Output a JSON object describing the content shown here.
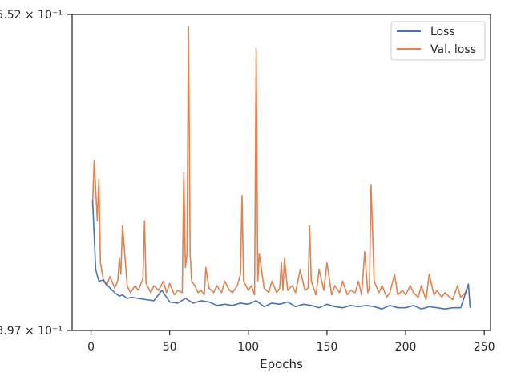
{
  "chart_data": {
    "type": "line",
    "title": "",
    "xlabel": "Epochs",
    "ylabel": "",
    "xlim": [
      -12,
      254
    ],
    "xticks": [
      0,
      50,
      100,
      150,
      200,
      250
    ],
    "ylim": [
      0.397,
      0.552
    ],
    "yscale": "log",
    "ytick_labels": [
      "3.97 × 10⁻¹",
      "5.52 × 10⁻¹"
    ],
    "grid": false,
    "legend_position": "top-right",
    "series": [
      {
        "name": "Loss",
        "color": "#4c72b0",
        "x": [
          1,
          3,
          5,
          8,
          10,
          12,
          15,
          18,
          20,
          23,
          26,
          30,
          35,
          40,
          45,
          50,
          55,
          60,
          65,
          70,
          75,
          80,
          85,
          90,
          95,
          100,
          105,
          110,
          115,
          120,
          125,
          130,
          135,
          140,
          145,
          150,
          155,
          160,
          165,
          170,
          175,
          180,
          185,
          190,
          195,
          200,
          205,
          210,
          215,
          220,
          225,
          230,
          235,
          240,
          241
        ],
        "y": [
          0.455,
          0.423,
          0.418,
          0.4185,
          0.4165,
          0.415,
          0.413,
          0.4115,
          0.412,
          0.4105,
          0.411,
          0.4105,
          0.41,
          0.4095,
          0.414,
          0.409,
          0.4085,
          0.4105,
          0.4085,
          0.4095,
          0.409,
          0.4075,
          0.408,
          0.4075,
          0.4085,
          0.408,
          0.4095,
          0.407,
          0.4085,
          0.408,
          0.409,
          0.407,
          0.408,
          0.4075,
          0.4065,
          0.408,
          0.407,
          0.4065,
          0.4075,
          0.407,
          0.4075,
          0.407,
          0.406,
          0.4075,
          0.4065,
          0.4065,
          0.4075,
          0.406,
          0.407,
          0.4065,
          0.406,
          0.4065,
          0.4065,
          0.4165,
          0.4065
        ]
      },
      {
        "name": "Val. loss",
        "color": "#dd8452",
        "x": [
          1,
          2,
          3,
          4,
          5,
          6,
          8,
          10,
          12,
          15,
          17,
          18,
          19,
          20,
          23,
          25,
          28,
          30,
          33,
          34,
          35,
          38,
          40,
          43,
          46,
          48,
          50,
          53,
          55,
          58,
          59,
          60,
          61,
          62,
          63,
          64,
          66,
          68,
          70,
          72,
          73,
          75,
          78,
          80,
          83,
          85,
          88,
          90,
          93,
          95,
          96,
          97,
          100,
          102,
          104,
          105,
          106,
          107,
          110,
          113,
          115,
          118,
          120,
          121,
          122,
          123,
          125,
          128,
          130,
          133,
          136,
          138,
          139,
          140,
          143,
          145,
          148,
          150,
          153,
          155,
          158,
          160,
          163,
          165,
          168,
          170,
          172,
          174,
          176,
          177,
          178,
          180,
          183,
          185,
          188,
          190,
          193,
          195,
          198,
          200,
          203,
          205,
          208,
          210,
          213,
          215,
          218,
          220,
          223,
          225,
          228,
          230,
          233,
          235,
          238,
          240
        ],
        "y": [
          0.452,
          0.474,
          0.46,
          0.445,
          0.465,
          0.426,
          0.418,
          0.416,
          0.42,
          0.415,
          0.418,
          0.428,
          0.421,
          0.443,
          0.416,
          0.413,
          0.416,
          0.414,
          0.419,
          0.445,
          0.417,
          0.413,
          0.416,
          0.414,
          0.418,
          0.413,
          0.417,
          0.412,
          0.414,
          0.413,
          0.468,
          0.424,
          0.43,
          0.545,
          0.43,
          0.418,
          0.416,
          0.413,
          0.414,
          0.412,
          0.424,
          0.415,
          0.413,
          0.416,
          0.413,
          0.418,
          0.414,
          0.413,
          0.416,
          0.421,
          0.457,
          0.418,
          0.414,
          0.416,
          0.412,
          0.533,
          0.418,
          0.43,
          0.415,
          0.413,
          0.418,
          0.413,
          0.415,
          0.426,
          0.414,
          0.428,
          0.414,
          0.416,
          0.413,
          0.423,
          0.414,
          0.415,
          0.443,
          0.418,
          0.412,
          0.423,
          0.414,
          0.426,
          0.412,
          0.416,
          0.413,
          0.418,
          0.412,
          0.414,
          0.413,
          0.418,
          0.412,
          0.431,
          0.413,
          0.415,
          0.462,
          0.418,
          0.413,
          0.416,
          0.411,
          0.413,
          0.421,
          0.412,
          0.414,
          0.412,
          0.416,
          0.413,
          0.411,
          0.416,
          0.41,
          0.421,
          0.412,
          0.414,
          0.411,
          0.413,
          0.411,
          0.41,
          0.416,
          0.411,
          0.413,
          0.417
        ]
      }
    ]
  }
}
